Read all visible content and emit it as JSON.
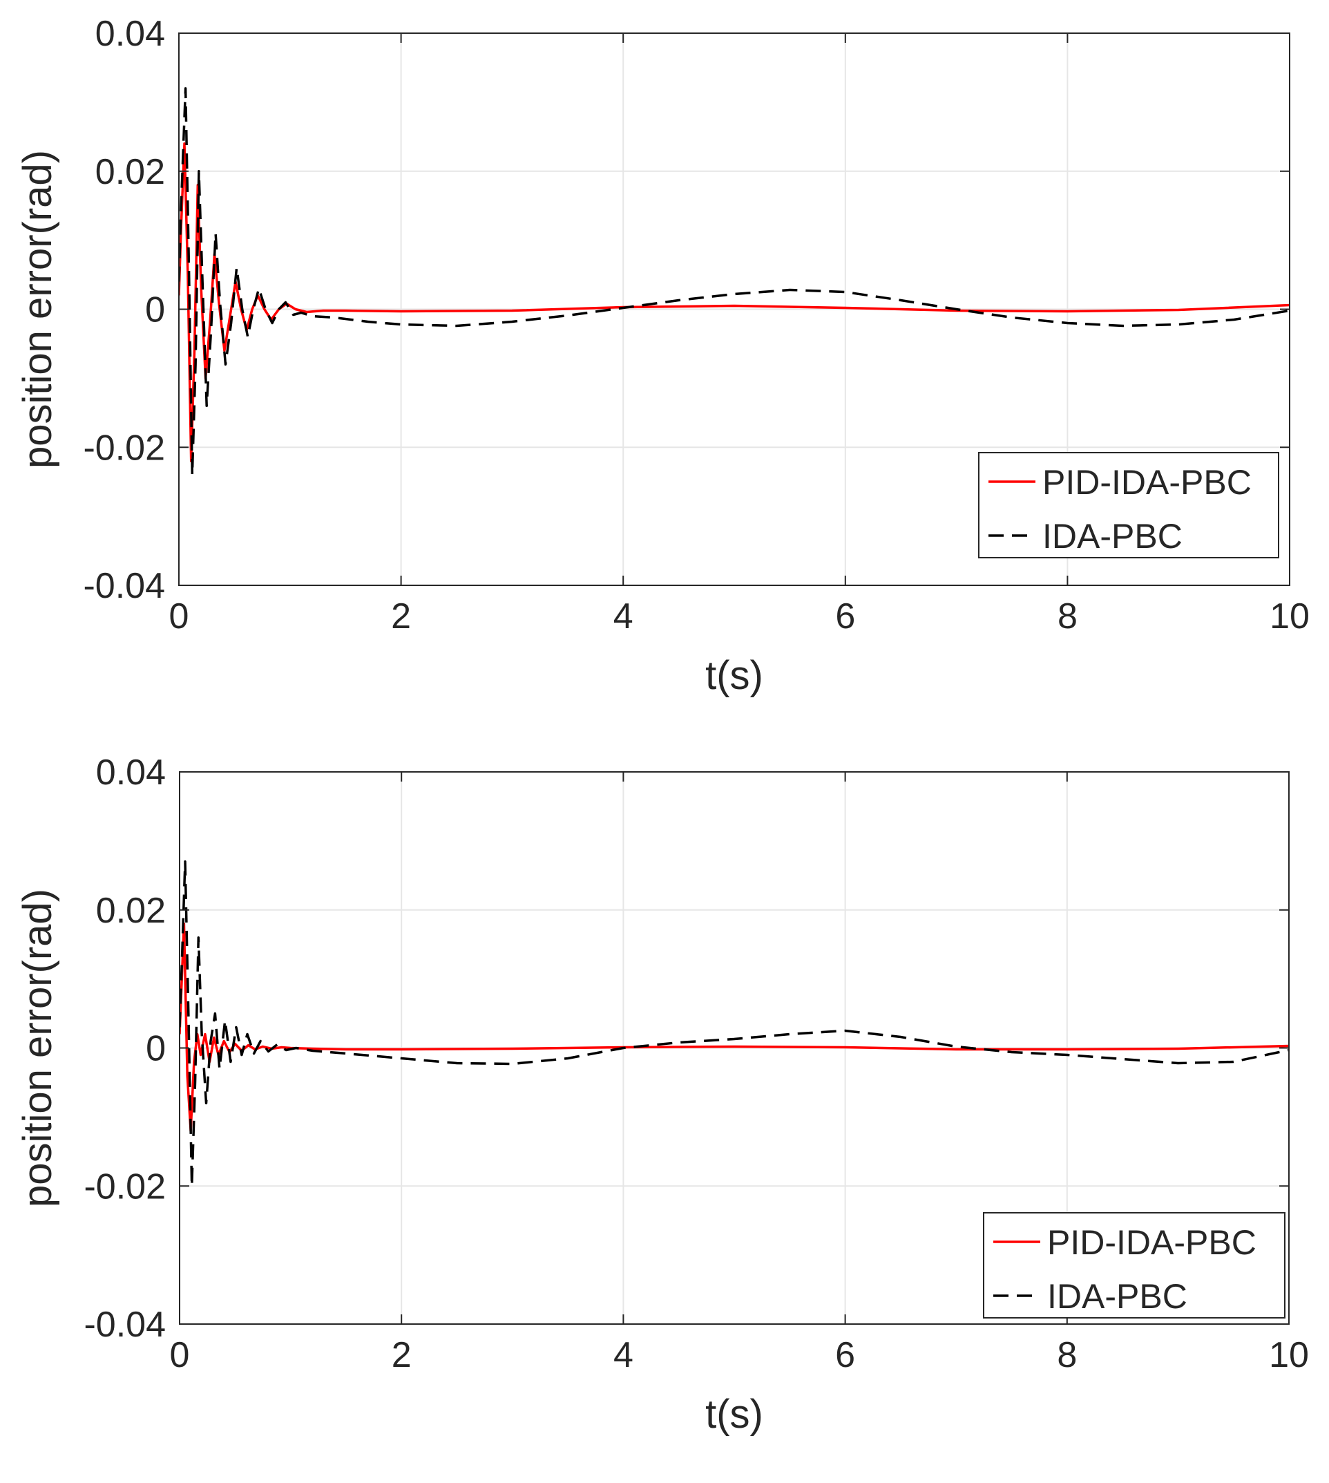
{
  "chart_data": [
    {
      "type": "line",
      "title": "",
      "xlabel": "t(s)",
      "ylabel": "position error(rad)",
      "xlim": [
        0,
        10
      ],
      "ylim": [
        -0.04,
        0.04
      ],
      "xticks": [
        0,
        2,
        4,
        6,
        8,
        10
      ],
      "xtick_labels": [
        "0",
        "2",
        "4",
        "6",
        "8",
        "10"
      ],
      "yticks": [
        -0.04,
        -0.02,
        0,
        0.02,
        0.04
      ],
      "ytick_labels": [
        "-0.04",
        "-0.02",
        "0",
        "0.02",
        "0.04"
      ],
      "grid": true,
      "legend_position": "bottom-right",
      "series": [
        {
          "name": "PID-IDA-PBC",
          "color": "#ff0000",
          "style": "solid",
          "x": [
            0,
            0.02,
            0.05,
            0.08,
            0.11,
            0.14,
            0.17,
            0.2,
            0.24,
            0.28,
            0.32,
            0.36,
            0.41,
            0.46,
            0.51,
            0.56,
            0.61,
            0.66,
            0.71,
            0.77,
            0.83,
            0.9,
            0.97,
            1.05,
            1.15,
            1.3,
            1.5,
            2,
            3,
            4,
            5,
            6,
            7,
            8,
            9,
            10
          ],
          "values": [
            0.002,
            0.012,
            0.024,
            0.005,
            -0.022,
            -0.006,
            0.018,
            0.003,
            -0.01,
            -0.002,
            0.008,
            0.001,
            -0.006,
            -0.001,
            0.004,
            0.0,
            -0.003,
            0.0,
            0.002,
            0.0,
            -0.0015,
            0.0,
            0.0008,
            0.0,
            -0.0004,
            -0.0002,
            -0.0002,
            -0.0003,
            -0.0002,
            0.0003,
            0.0005,
            0.0002,
            -0.0002,
            -0.0003,
            -0.0001,
            0.0006
          ]
        },
        {
          "name": "IDA-PBC",
          "color": "#000000",
          "style": "dashed",
          "x": [
            0,
            0.02,
            0.06,
            0.09,
            0.12,
            0.15,
            0.18,
            0.21,
            0.25,
            0.29,
            0.33,
            0.37,
            0.42,
            0.47,
            0.52,
            0.57,
            0.62,
            0.67,
            0.72,
            0.78,
            0.84,
            0.9,
            0.96,
            1.03,
            1.1,
            1.2,
            1.4,
            1.7,
            2.0,
            2.5,
            3.0,
            3.5,
            4.0,
            4.5,
            5.0,
            5.5,
            6.0,
            6.5,
            7.0,
            7.5,
            8.0,
            8.5,
            9.0,
            9.5,
            10.0
          ],
          "values": [
            0.004,
            0.015,
            0.032,
            0.006,
            -0.024,
            -0.008,
            0.02,
            0.005,
            -0.014,
            -0.003,
            0.011,
            0.001,
            -0.008,
            -0.002,
            0.006,
            0.0,
            -0.004,
            0.0,
            0.003,
            0.0,
            -0.002,
            0.0,
            0.001,
            -0.0008,
            -0.0005,
            -0.001,
            -0.0012,
            -0.0018,
            -0.0022,
            -0.0024,
            -0.0018,
            -0.0009,
            0.0002,
            0.0013,
            0.0022,
            0.0028,
            0.0025,
            0.0013,
            0.0,
            -0.0012,
            -0.002,
            -0.0024,
            -0.0022,
            -0.0015,
            -0.0002
          ]
        }
      ]
    },
    {
      "type": "line",
      "title": "",
      "xlabel": "t(s)",
      "ylabel": "position error(rad)",
      "xlim": [
        0,
        10
      ],
      "ylim": [
        -0.04,
        0.04
      ],
      "xticks": [
        0,
        2,
        4,
        6,
        8,
        10
      ],
      "xtick_labels": [
        "0",
        "2",
        "4",
        "6",
        "8",
        "10"
      ],
      "yticks": [
        -0.04,
        -0.02,
        0,
        0.02,
        0.04
      ],
      "ytick_labels": [
        "-0.04",
        "-0.02",
        "0",
        "0.02",
        "0.04"
      ],
      "grid": true,
      "legend_position": "bottom-right",
      "series": [
        {
          "name": "PID-IDA-PBC",
          "color": "#ff0000",
          "style": "solid",
          "x": [
            0,
            0.02,
            0.04,
            0.07,
            0.1,
            0.13,
            0.16,
            0.19,
            0.23,
            0.27,
            0.31,
            0.35,
            0.4,
            0.45,
            0.5,
            0.56,
            0.62,
            0.68,
            0.75,
            0.83,
            0.92,
            1.0,
            1.2,
            1.5,
            2,
            3,
            4,
            5,
            6,
            7,
            8,
            9,
            10
          ],
          "values": [
            0.002,
            0.01,
            0.018,
            -0.004,
            -0.012,
            -0.002,
            0.002,
            -0.001,
            0.002,
            -0.002,
            0.0015,
            -0.001,
            0.001,
            -0.0006,
            0.0006,
            -0.0004,
            0.0004,
            -0.0002,
            0.0002,
            -0.0001,
            0.0001,
            0.0,
            -0.0001,
            -0.0002,
            -0.0002,
            -0.0001,
            0.0001,
            0.0002,
            0.0001,
            -0.0002,
            -0.0002,
            -0.0001,
            0.0003
          ]
        },
        {
          "name": "IDA-PBC",
          "color": "#000000",
          "style": "dashed",
          "x": [
            0,
            0.02,
            0.05,
            0.08,
            0.11,
            0.14,
            0.17,
            0.2,
            0.24,
            0.28,
            0.32,
            0.36,
            0.41,
            0.46,
            0.51,
            0.56,
            0.61,
            0.67,
            0.73,
            0.8,
            0.88,
            0.96,
            1.05,
            1.2,
            1.5,
            2.0,
            2.5,
            3.0,
            3.5,
            4.0,
            4.5,
            5.0,
            5.5,
            6.0,
            6.5,
            7.0,
            7.5,
            8.0,
            8.5,
            9.0,
            9.5,
            10.0
          ],
          "values": [
            0.003,
            0.012,
            0.027,
            0.005,
            -0.02,
            -0.005,
            0.016,
            0.002,
            -0.008,
            0.001,
            0.005,
            -0.003,
            0.004,
            -0.002,
            0.003,
            -0.001,
            0.002,
            -0.0008,
            0.001,
            -0.0005,
            0.0005,
            -0.0003,
            0.0,
            -0.0004,
            -0.0008,
            -0.0015,
            -0.0022,
            -0.0023,
            -0.0015,
            0.0,
            0.0008,
            0.0013,
            0.002,
            0.0025,
            0.0016,
            0.0002,
            -0.0006,
            -0.001,
            -0.0016,
            -0.0022,
            -0.002,
            -0.0003
          ]
        }
      ]
    }
  ]
}
